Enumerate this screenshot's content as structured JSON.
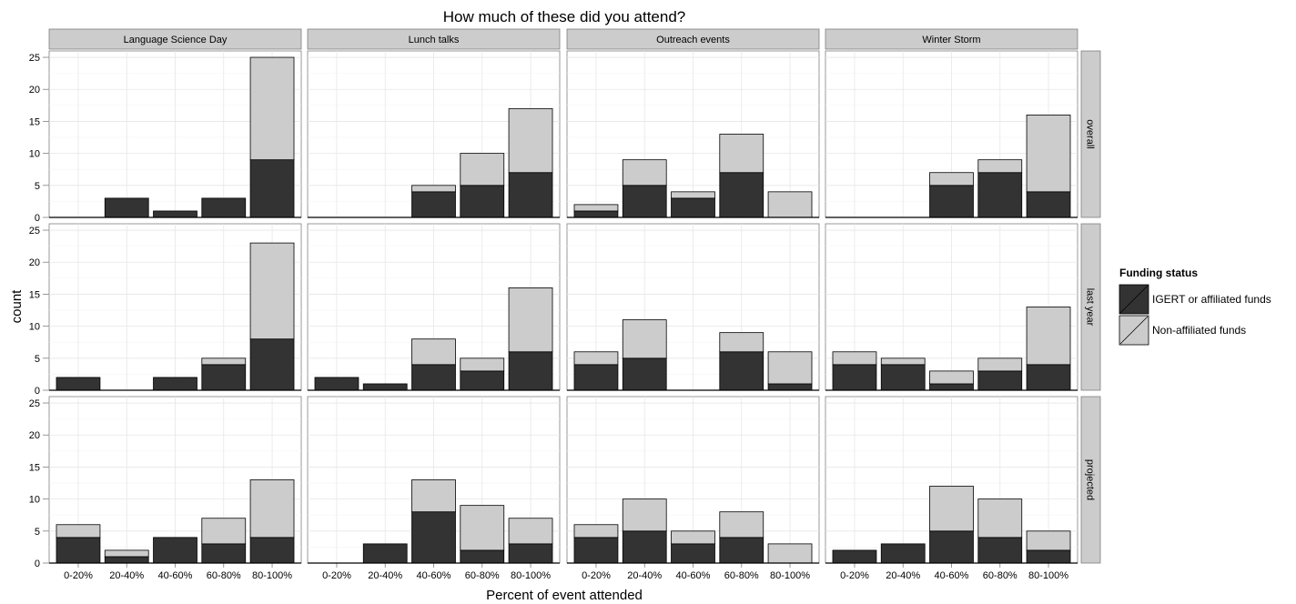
{
  "chart_data": {
    "type": "bar",
    "stacked": true,
    "title": "How much of these did you attend?",
    "xlabel": "Percent of event attended",
    "ylabel": "count",
    "ylim": [
      0,
      26
    ],
    "yticks": [
      "0",
      "5",
      "10",
      "15",
      "20",
      "25"
    ],
    "categories": [
      "0-20%",
      "20-40%",
      "40-60%",
      "60-80%",
      "80-100%"
    ],
    "grid": true,
    "legend": {
      "title": "Funding status",
      "position": "right",
      "entries": [
        {
          "name": "IGERT or affiliated funds",
          "color": "#333333"
        },
        {
          "name": "Non-affiliated funds",
          "color": "#cccccc"
        }
      ]
    },
    "facet_columns": [
      "Language Science Day",
      "Lunch talks",
      "Outreach events",
      "Winter Storm"
    ],
    "facet_rows": [
      "overall",
      "last year",
      "projected"
    ],
    "panels": [
      {
        "column": "Language Science Day",
        "row": "overall",
        "affiliated": [
          0,
          3,
          1,
          3,
          9
        ],
        "non_affiliated": [
          0,
          0,
          0,
          0,
          16
        ]
      },
      {
        "column": "Lunch talks",
        "row": "overall",
        "affiliated": [
          0,
          0,
          4,
          5,
          7
        ],
        "non_affiliated": [
          0,
          0,
          1,
          5,
          10
        ]
      },
      {
        "column": "Outreach events",
        "row": "overall",
        "affiliated": [
          1,
          5,
          3,
          7,
          0
        ],
        "non_affiliated": [
          1,
          4,
          1,
          6,
          4
        ]
      },
      {
        "column": "Winter Storm",
        "row": "overall",
        "affiliated": [
          0,
          0,
          5,
          7,
          4
        ],
        "non_affiliated": [
          0,
          0,
          2,
          2,
          12
        ]
      },
      {
        "column": "Language Science Day",
        "row": "last year",
        "affiliated": [
          2,
          0,
          2,
          4,
          8
        ],
        "non_affiliated": [
          0,
          0,
          0,
          1,
          15
        ]
      },
      {
        "column": "Lunch talks",
        "row": "last year",
        "affiliated": [
          2,
          1,
          4,
          3,
          6
        ],
        "non_affiliated": [
          0,
          0,
          4,
          2,
          10
        ]
      },
      {
        "column": "Outreach events",
        "row": "last year",
        "affiliated": [
          4,
          5,
          0,
          6,
          1
        ],
        "non_affiliated": [
          2,
          6,
          0,
          3,
          5
        ]
      },
      {
        "column": "Winter Storm",
        "row": "last year",
        "affiliated": [
          4,
          4,
          1,
          3,
          4
        ],
        "non_affiliated": [
          2,
          1,
          2,
          2,
          9
        ]
      },
      {
        "column": "Language Science Day",
        "row": "projected",
        "affiliated": [
          4,
          1,
          4,
          3,
          4
        ],
        "non_affiliated": [
          2,
          1,
          0,
          4,
          9
        ]
      },
      {
        "column": "Lunch talks",
        "row": "projected",
        "affiliated": [
          0,
          3,
          8,
          2,
          3
        ],
        "non_affiliated": [
          0,
          0,
          5,
          7,
          4
        ]
      },
      {
        "column": "Outreach events",
        "row": "projected",
        "affiliated": [
          4,
          5,
          3,
          4,
          0
        ],
        "non_affiliated": [
          2,
          5,
          2,
          4,
          3
        ]
      },
      {
        "column": "Winter Storm",
        "row": "projected",
        "affiliated": [
          2,
          3,
          5,
          4,
          2
        ],
        "non_affiliated": [
          0,
          0,
          7,
          6,
          3
        ]
      }
    ]
  }
}
